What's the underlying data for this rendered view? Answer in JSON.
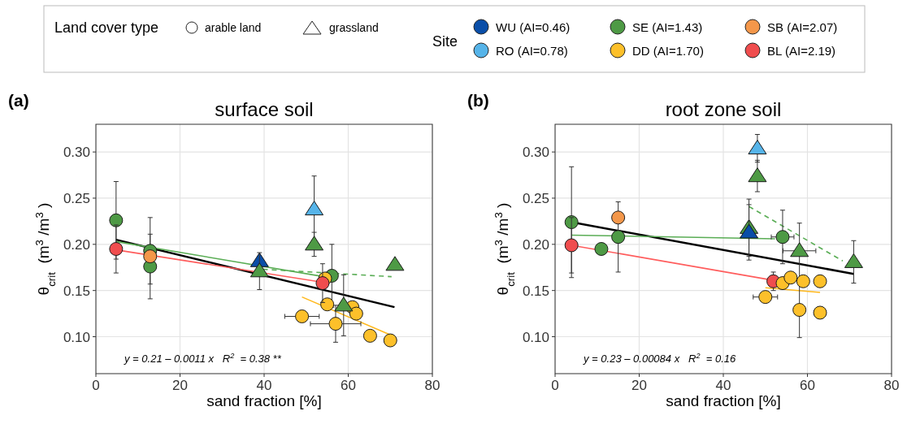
{
  "chart_data": [
    {
      "type": "scatter",
      "title": "surface soil",
      "xlabel": "sand fraction [%]",
      "ylabel": "θ$_{crit}$ (m$^{3}$/m$^{3}$)",
      "legend_title": "Site",
      "legend": "top",
      "xlim": [
        0,
        80
      ],
      "ylim": [
        0.06,
        0.33
      ],
      "xticks": [
        0,
        20,
        40,
        60,
        80
      ],
      "yticks": [
        {
          "value": 0.1,
          "label": "0.10"
        },
        {
          "value": 0.15,
          "label": "0.15"
        },
        {
          "value": 0.2,
          "label": "0.20"
        },
        {
          "value": 0.25,
          "label": "0.25"
        },
        {
          "value": 0.3,
          "label": "0.30"
        }
      ],
      "grid": true,
      "annotations": [
        "(a)",
        "y = 0.21 – 0.0011 x   R$^{2}$ = 0.38 **",
        "Land cover type",
        "arable land",
        "grassland"
      ],
      "series": [
        {
          "type": "line",
          "color": "#000000",
          "line_style": "solid",
          "x": [
            4.8,
            71
          ],
          "values": [
            0.205,
            0.132
          ]
        },
        {
          "type": "line",
          "color": "#5aad55",
          "line_style": "solid",
          "x": [
            4.8,
            54.2
          ],
          "values": [
            0.203,
            0.165
          ]
        },
        {
          "type": "line",
          "color": "#5aad55",
          "line_style": "dashed",
          "x": [
            39.7,
            70.3
          ],
          "values": [
            0.173,
            0.165
          ]
        },
        {
          "type": "line",
          "color": "#ff5c5c",
          "line_style": "solid",
          "x": [
            4.8,
            53.9
          ],
          "values": [
            0.194,
            0.159
          ]
        },
        {
          "type": "line",
          "color": "#ffb81c",
          "line_style": "solid",
          "x": [
            49,
            70
          ],
          "values": [
            0.143,
            0.102
          ]
        },
        {
          "type": "scatter",
          "name": "WU (AI=0.46)",
          "marker": "triangle",
          "color": "#0a4ea8",
          "x": [
            38.9
          ],
          "values": [
            0.182
          ]
        },
        {
          "type": "scatter",
          "name": "RO (AI=0.78)",
          "marker": "triangle",
          "color": "#56b4e9",
          "x": [
            51.9
          ],
          "values": [
            0.238
          ],
          "errors": [
            0.036
          ]
        },
        {
          "type": "scatter",
          "name": "SE (AI=1.43)",
          "marker": "circle",
          "color": "#4e9a45",
          "x": [
            4.8,
            12.9,
            12.9,
            56.1
          ],
          "values": [
            0.226,
            0.193,
            0.176,
            0.166
          ],
          "errors": [
            0.042,
            0.036,
            0.035,
            0.034
          ]
        },
        {
          "type": "scatter",
          "name": "DD (AI=1.70)",
          "marker": "circle",
          "color": "#fdc02a",
          "x": [
            54.5,
            55,
            49,
            57,
            61,
            61.9,
            65.2,
            70
          ],
          "values": [
            0.163,
            0.135,
            0.122,
            0.114,
            0.132,
            0.125,
            0.101,
            0.096
          ],
          "errors": [
            null,
            null,
            null,
            0.02,
            null,
            null,
            null,
            null
          ],
          "xerrors": [
            null,
            null,
            4.1,
            6,
            null,
            null,
            null,
            null
          ]
        },
        {
          "type": "scatter",
          "name": "SB (AI=2.07)",
          "marker": "circle",
          "color": "#f4974a",
          "x": [
            12.9
          ],
          "values": [
            0.187
          ]
        },
        {
          "type": "scatter",
          "name": "BL (AI=2.19)",
          "marker": "circle",
          "color": "#f04d4e",
          "x": [
            4.8,
            53.9
          ],
          "values": [
            0.195,
            0.158
          ],
          "errors": [
            0.026,
            0.021
          ]
        },
        {
          "type": "scatter",
          "marker": "triangle",
          "color": "#4e9a45",
          "x": [
            38.9,
            51.9,
            71.1,
            58.9
          ],
          "values": [
            0.171,
            0.2,
            0.178,
            0.134
          ],
          "errors": [
            0.02,
            0.013,
            null,
            0.033
          ]
        }
      ]
    },
    {
      "type": "scatter",
      "title": "root zone soil",
      "xlabel": "sand fraction [%]",
      "ylabel": "θ$_{crit}$ (m$^{3}$/m$^{3}$)",
      "xlim": [
        0,
        80
      ],
      "ylim": [
        0.06,
        0.33
      ],
      "xticks": [
        0,
        20,
        40,
        60,
        80
      ],
      "yticks": [
        {
          "value": 0.1,
          "label": "0.10"
        },
        {
          "value": 0.15,
          "label": "0.15"
        },
        {
          "value": 0.2,
          "label": "0.20"
        },
        {
          "value": 0.25,
          "label": "0.25"
        },
        {
          "value": 0.3,
          "label": "0.30"
        }
      ],
      "grid": true,
      "annotations": [
        "(b)",
        "y = 0.23 – 0.00084 x   R$^{2}$ = 0.16"
      ],
      "series": [
        {
          "type": "line",
          "color": "#000000",
          "line_style": "solid",
          "x": [
            3.9,
            71
          ],
          "values": [
            0.224,
            0.168
          ]
        },
        {
          "type": "line",
          "color": "#5aad55",
          "line_style": "solid",
          "x": [
            3.9,
            52.3
          ],
          "values": [
            0.21,
            0.206
          ]
        },
        {
          "type": "line",
          "color": "#5aad55",
          "line_style": "dashed",
          "x": [
            46.1,
            68.4
          ],
          "values": [
            0.241,
            0.182
          ]
        },
        {
          "type": "line",
          "color": "#ff5c5c",
          "line_style": "solid",
          "x": [
            3.9,
            51.9
          ],
          "values": [
            0.199,
            0.161
          ]
        },
        {
          "type": "line",
          "color": "#ffb81c",
          "line_style": "solid",
          "x": [
            50,
            63
          ],
          "values": [
            0.153,
            0.148
          ]
        },
        {
          "type": "scatter",
          "marker": "triangle",
          "color": "#4e9a45",
          "x": [
            46.1,
            48.1,
            58.1,
            71
          ],
          "values": [
            0.218,
            0.274,
            0.193,
            0.181
          ],
          "errors": [
            0.031,
            0.017,
            0.03,
            0.023
          ],
          "xerrors": [
            null,
            null,
            3.9,
            null
          ]
        },
        {
          "type": "scatter",
          "marker": "triangle",
          "color": "#0a4ea8",
          "x": [
            46.1
          ],
          "values": [
            0.213
          ],
          "errors": [
            0.03
          ]
        },
        {
          "type": "scatter",
          "marker": "triangle",
          "color": "#56b4e9",
          "x": [
            48.1
          ],
          "values": [
            0.304
          ],
          "errors": [
            0.015
          ]
        },
        {
          "type": "scatter",
          "marker": "circle",
          "color": "#4e9a45",
          "x": [
            3.9,
            11,
            15,
            54.1
          ],
          "values": [
            0.224,
            0.195,
            0.208,
            0.208
          ],
          "errors": [
            0.06,
            null,
            0.038,
            0.029
          ],
          "xerrors": [
            null,
            null,
            null,
            2.7
          ]
        },
        {
          "type": "scatter",
          "marker": "circle",
          "color": "#f4974a",
          "x": [
            15
          ],
          "values": [
            0.229
          ]
        },
        {
          "type": "scatter",
          "marker": "circle",
          "color": "#f04d4e",
          "x": [
            3.9,
            51.9
          ],
          "values": [
            0.199,
            0.16
          ],
          "errors": [
            0.03,
            0.01
          ]
        },
        {
          "type": "scatter",
          "marker": "circle",
          "color": "#fdc02a",
          "x": [
            50,
            54.1,
            56,
            59,
            58.1,
            63,
            63
          ],
          "values": [
            0.143,
            0.158,
            0.164,
            0.16,
            0.129,
            0.16,
            0.126
          ],
          "errors": [
            null,
            null,
            null,
            null,
            0.03,
            null,
            null
          ],
          "xerrors": [
            2.9,
            null,
            null,
            null,
            null,
            null,
            null
          ]
        }
      ]
    }
  ]
}
